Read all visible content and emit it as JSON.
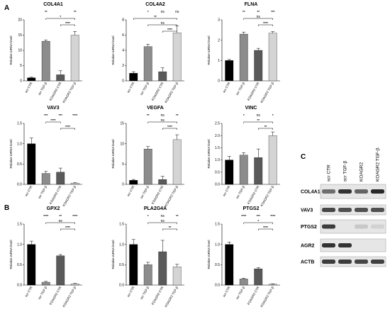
{
  "panels": {
    "A": "A",
    "B": "B",
    "C": "C"
  },
  "ylabel": "Relative mRNA level",
  "colors": [
    "#000000",
    "#8c8c8c",
    "#5a5a5a",
    "#d4d4d4"
  ],
  "chart_data": [
    {
      "type": "bar",
      "title": "COL4A1",
      "categories": [
        "scr CTR",
        "scr TGF-β",
        "KOAGR2 CTR",
        "KOAGR2 TGF-β"
      ],
      "values": [
        1,
        13,
        2,
        15
      ],
      "errors": [
        0.2,
        0.4,
        1.3,
        1.2
      ],
      "ylim": [
        0,
        20
      ],
      "yticks": [
        "0",
        "5",
        "10",
        "15",
        "20"
      ],
      "stars": [
        "",
        "**",
        "",
        "**"
      ],
      "brackets": [
        {
          "from": 1,
          "to": 3,
          "label": "*"
        },
        {
          "from": 2,
          "to": 3,
          "label": "****"
        }
      ]
    },
    {
      "type": "bar",
      "title": "COL4A2",
      "categories": [
        "scr CTR",
        "scr TGF-β",
        "KOAGR2 CTR",
        "KOAGR2 TGF-β"
      ],
      "values": [
        1,
        4.5,
        1.2,
        6.3
      ],
      "errors": [
        0.2,
        0.3,
        0.5,
        0.9
      ],
      "ylim": [
        0,
        8
      ],
      "yticks": [
        "0",
        "2",
        "4",
        "6",
        "8"
      ],
      "stars": [
        "",
        "*",
        "ns",
        "ns"
      ],
      "brackets": [
        {
          "from": 0,
          "to": 3,
          "label": "**"
        },
        {
          "from": 1,
          "to": 3,
          "label": "ns"
        },
        {
          "from": 2,
          "to": 3,
          "label": "****"
        }
      ]
    },
    {
      "type": "bar",
      "title": "FLNA",
      "categories": [
        "scr CTR",
        "scr TGF-β",
        "KOAGR2 CTR",
        "KOAGR2 TGF-β"
      ],
      "values": [
        1,
        2.3,
        1.5,
        2.35
      ],
      "errors": [
        0.05,
        0.1,
        0.1,
        0.07
      ],
      "ylim": [
        0,
        3
      ],
      "yticks": [
        "0",
        "1",
        "2",
        "3"
      ],
      "stars": [
        "",
        "**",
        "**",
        "***"
      ],
      "brackets": [
        {
          "from": 1,
          "to": 3,
          "label": "ns"
        },
        {
          "from": 2,
          "to": 3,
          "label": "****"
        }
      ]
    },
    {
      "type": "bar",
      "title": "VAV3",
      "categories": [
        "scr CTR",
        "scr TGF-β",
        "KOAGR2 CTR",
        "KOAGR2 TGF-β"
      ],
      "values": [
        1,
        0.27,
        0.3,
        0.03
      ],
      "errors": [
        0.14,
        0.05,
        0.1,
        0.01
      ],
      "ylim": [
        0,
        1.5
      ],
      "yticks": [
        "0.0",
        "0.5",
        "1.0",
        "1.5"
      ],
      "stars": [
        "",
        "***",
        "***",
        "****"
      ],
      "brackets": [
        {
          "from": 1,
          "to": 2,
          "label": "****"
        },
        {
          "from": 2,
          "to": 3,
          "label": "****"
        }
      ]
    },
    {
      "type": "bar",
      "title": "VEGFA",
      "categories": [
        "scr CTR",
        "scr TGF-β",
        "KOAGR2 CTR",
        "KOAGR2 TGF-β"
      ],
      "values": [
        1,
        8.7,
        1.2,
        11
      ],
      "errors": [
        0.2,
        0.6,
        0.8,
        1.2
      ],
      "ylim": [
        0,
        15
      ],
      "yticks": [
        "0",
        "5",
        "10",
        "15"
      ],
      "stars": [
        "",
        "**",
        "ns",
        "**"
      ],
      "brackets": [
        {
          "from": 1,
          "to": 3,
          "label": "ns"
        },
        {
          "from": 2,
          "to": 3,
          "label": "****"
        }
      ]
    },
    {
      "type": "bar",
      "title": "VINC",
      "categories": [
        "scr CTR",
        "scr TGF-β",
        "KOAGR2 CTR",
        "KOAGR2 TGF-β"
      ],
      "values": [
        1,
        1.2,
        1.1,
        2
      ],
      "errors": [
        0.15,
        0.1,
        0.35,
        0.15
      ],
      "ylim": [
        0,
        2.5
      ],
      "yticks": [
        "0.0",
        "0.5",
        "1.0",
        "1.5",
        "2.0",
        "2.5"
      ],
      "stars": [
        "",
        "*",
        "ns",
        "*"
      ],
      "brackets": [
        {
          "from": 1,
          "to": 3,
          "label": "**"
        },
        {
          "from": 2,
          "to": 3,
          "label": "**"
        }
      ]
    },
    {
      "type": "bar",
      "title": "GPX2",
      "categories": [
        "scr CTR",
        "scr TGF-β",
        "KOAGR2 CTR",
        "KOAGR2 TGF-β"
      ],
      "values": [
        1,
        0.07,
        0.72,
        0.03
      ],
      "errors": [
        0.08,
        0.02,
        0.03,
        0.01
      ],
      "ylim": [
        0,
        1.5
      ],
      "yticks": [
        "0.0",
        "0.5",
        "1.0",
        "1.5"
      ],
      "stars": [
        "",
        "****",
        "**",
        "****"
      ],
      "brackets": [
        {
          "from": 1,
          "to": 3,
          "label": "ns"
        },
        {
          "from": 2,
          "to": 3,
          "label": "****"
        }
      ]
    },
    {
      "type": "bar",
      "title": "PLA2G4A",
      "categories": [
        "scr CTR",
        "scr TGF-β",
        "KOAGR2 CTR",
        "KOAGR2 TGF-β"
      ],
      "values": [
        1,
        0.5,
        0.82,
        0.45
      ],
      "errors": [
        0.12,
        0.06,
        0.28,
        0.06
      ],
      "ylim": [
        0,
        1.5
      ],
      "yticks": [
        "0.0",
        "0.5",
        "1.0",
        "1.5"
      ],
      "stars": [
        "",
        "*",
        "ns",
        "**"
      ],
      "brackets": [
        {
          "from": 1,
          "to": 3,
          "label": "ns"
        },
        {
          "from": 2,
          "to": 3,
          "label": "**"
        }
      ]
    },
    {
      "type": "bar",
      "title": "PTGS2",
      "categories": [
        "scr CTR",
        "scr TGF-β",
        "KOAGR2 CTR",
        "KOAGR2 TGF-β"
      ],
      "values": [
        1,
        0.15,
        0.4,
        0.02
      ],
      "errors": [
        0.06,
        0.02,
        0.03,
        0.01
      ],
      "ylim": [
        0,
        1.5
      ],
      "yticks": [
        "0.0",
        "0.5",
        "1.0",
        "1.5"
      ],
      "stars": [
        "",
        "****",
        "***",
        "****"
      ],
      "brackets": [
        {
          "from": 1,
          "to": 3,
          "label": "*"
        },
        {
          "from": 2,
          "to": 3,
          "label": "****"
        }
      ]
    }
  ],
  "blot": {
    "lanes": [
      "scr CTR",
      "scr TGF-β",
      "KOAGR2",
      "KOAGR2 TGF-β"
    ],
    "rows": [
      {
        "label": "COL4A1",
        "intensities": [
          0.55,
          0.85,
          0.6,
          0.9
        ]
      },
      {
        "label": "VAV3",
        "intensities": [
          0.75,
          0.7,
          0.7,
          0.7
        ]
      },
      {
        "label": "PTGS2",
        "intensities": [
          0.8,
          0,
          0.1,
          0.05
        ]
      },
      {
        "label": "AGR2",
        "intensities": [
          0.85,
          0.85,
          0,
          0
        ]
      },
      {
        "label": "ACTB",
        "intensities": [
          0.8,
          0.8,
          0.75,
          0.78
        ]
      }
    ]
  }
}
